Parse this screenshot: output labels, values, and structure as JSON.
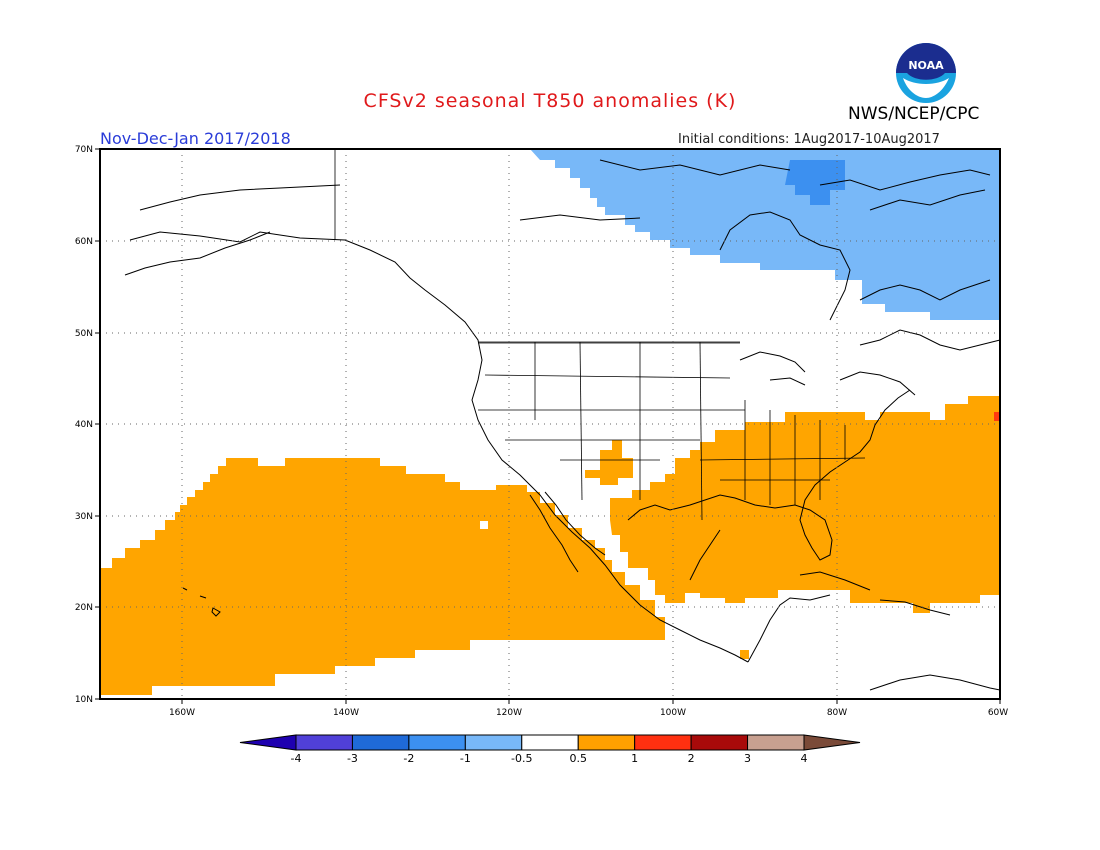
{
  "title": "CFSv2 seasonal T850 anomalies (K)",
  "agency": "NWS/NCEP/CPC",
  "logo_text": "NOAA",
  "period": "Nov-Dec-Jan 2017/2018",
  "initial_conditions": "Initial conditions: 1Aug2017-10Aug2017",
  "map": {
    "extent": {
      "lon": [
        -170,
        -60
      ],
      "lat": [
        10,
        70
      ]
    },
    "lat_ticks": [
      "10N",
      "20N",
      "30N",
      "40N",
      "50N",
      "60N",
      "70N"
    ],
    "lon_ticks": [
      "160W",
      "140W",
      "120W",
      "100W",
      "80W",
      "60W"
    ],
    "colors": {
      "warm_0_5_1": "#ffa500",
      "warm_1_2": "#ff3a10",
      "cool_0_5_1": "#78b8f8",
      "cool_1_2": "#3c90f0",
      "land_outline": "#000000"
    }
  },
  "colorbar": {
    "labels": [
      "-4",
      "-3",
      "-2",
      "-1",
      "-0.5",
      "0.5",
      "1",
      "2",
      "3",
      "4"
    ],
    "colors": [
      "#1e00b0",
      "#5040d8",
      "#1f6ad8",
      "#3c90f0",
      "#78b8f8",
      "#ffffff",
      "#ffa000",
      "#ff3010",
      "#a80a0a",
      "#c8a090",
      "#7a4a38"
    ]
  }
}
